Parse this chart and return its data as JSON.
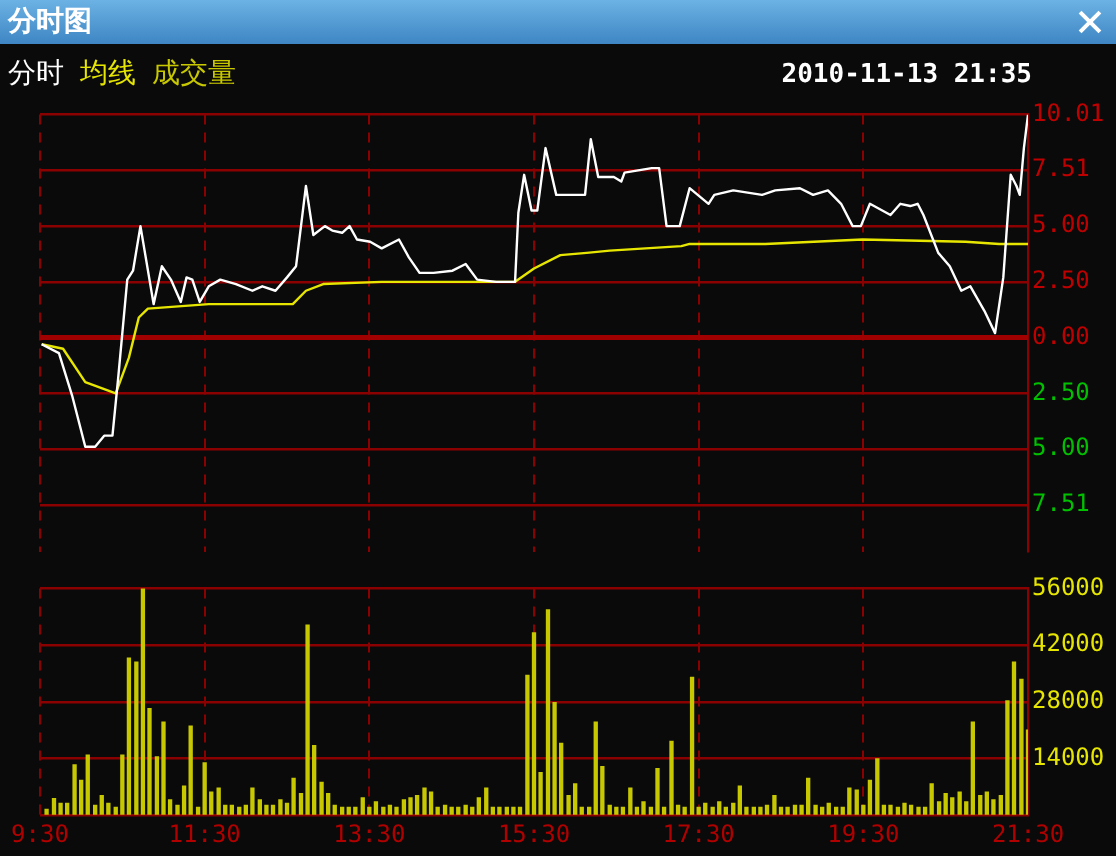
{
  "chart_data": [
    {
      "type": "line",
      "title": "分时图",
      "annotations": [
        "2010-11-13 21:35"
      ],
      "legend": "top left",
      "grid": true,
      "tick_labels": "y",
      "ref_lines": [
        {
          "axis": "y",
          "value": 0,
          "color": "#a00000"
        }
      ],
      "xlim": [
        9.5,
        21.5
      ],
      "xticks": [
        {
          "value": 9.5,
          "label": null
        },
        {
          "value": 11.5,
          "label": null
        },
        {
          "value": 13.5,
          "label": null
        },
        {
          "value": 15.5,
          "label": null
        },
        {
          "value": 17.5,
          "label": null
        },
        {
          "value": 19.5,
          "label": null
        },
        {
          "value": 21.5,
          "label": null
        }
      ],
      "ylim": [
        -9.6,
        10.01
      ],
      "yticks": [
        10.01,
        7.51,
        {
          "value": 5,
          "label": "5.00"
        },
        {
          "value": 2.5,
          "label": "2.50"
        },
        {
          "value": 0,
          "label": "0.00"
        },
        {
          "value": -2.5,
          "label": "2.50"
        },
        {
          "value": -5,
          "label": "5.00"
        },
        {
          "value": -7.51,
          "label": "7.51"
        }
      ],
      "series": [
        {
          "name": "分时",
          "color": "#ffffff",
          "x": [
            9.52,
            9.73,
            9.89,
            10.05,
            10.17,
            10.28,
            10.38,
            10.45,
            10.56,
            10.63,
            10.72,
            10.88,
            10.98,
            11.09,
            11.21,
            11.28,
            11.35,
            11.44,
            11.55,
            11.69,
            11.88,
            12.08,
            12.2,
            12.36,
            12.5,
            12.61,
            12.73,
            12.82,
            12.96,
            13.05,
            13.17,
            13.26,
            13.35,
            13.51,
            13.65,
            13.86,
            13.98,
            14.11,
            14.28,
            14.51,
            14.67,
            14.81,
            15.04,
            15.13,
            15.27,
            15.31,
            15.38,
            15.47,
            15.54,
            15.64,
            15.77,
            15.89,
            16.12,
            16.19,
            16.28,
            16.47,
            16.56,
            16.6,
            16.93,
            17.02,
            17.11,
            17.27,
            17.39,
            17.62,
            17.69,
            17.92,
            18.27,
            18.43,
            18.73,
            18.89,
            19.07,
            19.23,
            19.37,
            19.47,
            19.58,
            19.83,
            19.95,
            20.07,
            20.16,
            20.23,
            20.41,
            20.55,
            20.69,
            20.8,
            20.97,
            21.1,
            21.2,
            21.29,
            21.36,
            21.4,
            21.45,
            21.5
          ],
          "values": [
            -0.3,
            -0.7,
            -2.6,
            -4.9,
            -4.9,
            -4.4,
            -4.4,
            -1.8,
            2.6,
            3.0,
            5.0,
            1.5,
            3.2,
            2.6,
            1.6,
            2.7,
            2.6,
            1.6,
            2.3,
            2.6,
            2.4,
            2.1,
            2.3,
            2.1,
            2.7,
            3.2,
            6.8,
            4.6,
            5.0,
            4.8,
            4.7,
            5.0,
            4.4,
            4.3,
            4.0,
            4.4,
            3.6,
            2.9,
            2.9,
            3.0,
            3.3,
            2.6,
            2.5,
            2.5,
            2.5,
            5.6,
            7.3,
            5.7,
            5.7,
            8.5,
            6.4,
            6.4,
            6.4,
            8.9,
            7.2,
            7.2,
            7.0,
            7.4,
            7.6,
            7.6,
            5.0,
            5.0,
            6.7,
            6.0,
            6.4,
            6.6,
            6.4,
            6.6,
            6.7,
            6.4,
            6.6,
            6.0,
            5.0,
            5.0,
            6.0,
            5.5,
            6.0,
            5.9,
            6.0,
            5.5,
            3.8,
            3.2,
            2.1,
            2.3,
            1.2,
            0.2,
            2.7,
            7.3,
            6.8,
            6.4,
            8.5,
            10.0
          ]
        },
        {
          "name": "均线",
          "color": "#e6e600",
          "x": [
            9.52,
            9.78,
            10.05,
            10.42,
            10.58,
            10.7,
            10.81,
            11.55,
            12.57,
            12.73,
            12.94,
            13.65,
            15.27,
            15.5,
            15.82,
            16.14,
            16.42,
            17.29,
            17.39,
            18.31,
            19.49,
            20.74,
            21.15,
            21.5
          ],
          "values": [
            -0.3,
            -0.5,
            -2.0,
            -2.5,
            -0.9,
            0.9,
            1.3,
            1.5,
            1.5,
            2.1,
            2.4,
            2.5,
            2.5,
            3.1,
            3.7,
            3.8,
            3.9,
            4.1,
            4.2,
            4.2,
            4.4,
            4.3,
            4.2,
            4.2
          ]
        }
      ]
    },
    {
      "type": "bar",
      "legend": "top left",
      "grid": true,
      "xlim": [
        9.5,
        21.5
      ],
      "xticks": [
        {
          "value": 9.5,
          "label": "9:30"
        },
        {
          "value": 11.5,
          "label": "11:30"
        },
        {
          "value": 13.5,
          "label": "13:30"
        },
        {
          "value": 15.5,
          "label": "15:30"
        },
        {
          "value": 17.5,
          "label": "17:30"
        },
        {
          "value": 19.5,
          "label": "19:30"
        },
        {
          "value": 21.5,
          "label": "21:30"
        }
      ],
      "ylim": [
        0,
        56000
      ],
      "yticks": [
        {
          "value": 0,
          "label": null
        },
        14000,
        28000,
        42000,
        56000
      ],
      "series": [
        {
          "name": "成交量",
          "color": "#c8c800",
          "x": [
            9.58,
            9.67,
            9.75,
            9.83,
            9.92,
            10,
            10.08,
            10.17,
            10.25,
            10.33,
            10.42,
            10.5,
            10.58,
            10.67,
            10.75,
            10.83,
            10.92,
            11,
            11.08,
            11.17,
            11.25,
            11.33,
            11.42,
            11.5,
            11.58,
            11.67,
            11.75,
            11.83,
            11.92,
            12,
            12.08,
            12.17,
            12.25,
            12.33,
            12.42,
            12.5,
            12.58,
            12.67,
            12.75,
            12.83,
            12.92,
            13,
            13.08,
            13.17,
            13.25,
            13.33,
            13.42,
            13.5,
            13.58,
            13.67,
            13.75,
            13.83,
            13.92,
            14,
            14.08,
            14.17,
            14.25,
            14.33,
            14.42,
            14.5,
            14.58,
            14.67,
            14.75,
            14.83,
            14.92,
            15,
            15.08,
            15.17,
            15.25,
            15.33,
            15.42,
            15.5,
            15.58,
            15.67,
            15.75,
            15.83,
            15.92,
            16,
            16.08,
            16.17,
            16.25,
            16.33,
            16.42,
            16.5,
            16.58,
            16.67,
            16.75,
            16.83,
            16.92,
            17,
            17.08,
            17.17,
            17.25,
            17.33,
            17.42,
            17.5,
            17.58,
            17.67,
            17.75,
            17.83,
            17.92,
            18,
            18.08,
            18.17,
            18.25,
            18.33,
            18.42,
            18.5,
            18.58,
            18.67,
            18.75,
            18.83,
            18.92,
            19,
            19.08,
            19.17,
            19.25,
            19.33,
            19.42,
            19.5,
            19.58,
            19.67,
            19.75,
            19.83,
            19.92,
            20,
            20.08,
            20.17,
            20.25,
            20.33,
            20.42,
            20.5,
            20.58,
            20.67,
            20.75,
            20.83,
            20.92,
            21,
            21.08,
            21.17,
            21.25,
            21.33,
            21.42,
            21.5
          ],
          "values": [
            1400,
            4100,
            2900,
            2900,
            12400,
            8600,
            14800,
            2400,
            4800,
            2900,
            1900,
            14800,
            38800,
            37800,
            56000,
            26300,
            14400,
            23000,
            3800,
            2400,
            7200,
            22000,
            1900,
            12900,
            5700,
            6700,
            2400,
            2400,
            1900,
            2400,
            6700,
            3800,
            2400,
            2400,
            3800,
            2900,
            9100,
            5300,
            46900,
            17200,
            8100,
            5300,
            2400,
            1900,
            1900,
            1900,
            4300,
            1900,
            3300,
            1900,
            2400,
            1900,
            3800,
            4300,
            4800,
            6700,
            5700,
            1900,
            2400,
            1900,
            1900,
            2400,
            1900,
            4300,
            6700,
            1900,
            1900,
            1900,
            1900,
            1900,
            34500,
            45000,
            10500,
            50700,
            27800,
            17700,
            4800,
            7700,
            1900,
            1900,
            23000,
            12000,
            2400,
            1900,
            1900,
            6700,
            1900,
            3300,
            1900,
            11500,
            1900,
            18200,
            2400,
            1900,
            34000,
            1900,
            2900,
            1900,
            3300,
            1900,
            2900,
            7200,
            1900,
            1900,
            1900,
            2400,
            4800,
            1900,
            1900,
            2400,
            2400,
            9100,
            2400,
            1900,
            2900,
            1900,
            1900,
            6700,
            6200,
            2400,
            8600,
            13900,
            2400,
            2400,
            1900,
            2900,
            2400,
            1900,
            1900,
            7700,
            3300,
            5300,
            4300,
            5700,
            3300,
            23000,
            4800,
            5700,
            3800,
            4800,
            28200,
            37800,
            33500,
            21000
          ]
        }
      ]
    }
  ]
}
